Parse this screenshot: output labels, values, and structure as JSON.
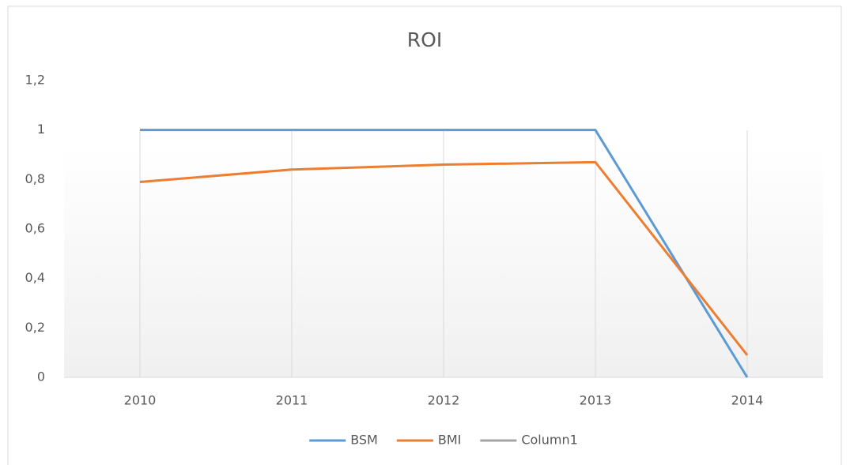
{
  "chart_data": {
    "type": "line",
    "title": "ROI",
    "categories": [
      "2010",
      "2011",
      "2012",
      "2013",
      "2014"
    ],
    "series": [
      {
        "name": "BSM",
        "color": "#5b9bd5",
        "values": [
          1,
          1,
          1,
          1,
          0
        ]
      },
      {
        "name": "BMI",
        "color": "#ed7d31",
        "values": [
          0.79,
          0.84,
          0.86,
          0.87,
          0.09
        ]
      },
      {
        "name": "Column1",
        "color": "#a5a5a5",
        "values": [
          null,
          null,
          null,
          null,
          null
        ]
      }
    ],
    "ylim": [
      0,
      1.2
    ],
    "yticks": [
      0,
      {
        "value": 0.2,
        "label": "0,2"
      },
      {
        "value": 0.4,
        "label": "0,4"
      },
      {
        "value": 0.6,
        "label": "0,6"
      },
      {
        "value": 0.8,
        "label": "0,8"
      },
      1,
      {
        "value": 1.2,
        "label": "1,2"
      }
    ],
    "grid": "x",
    "legend": "bottom"
  }
}
